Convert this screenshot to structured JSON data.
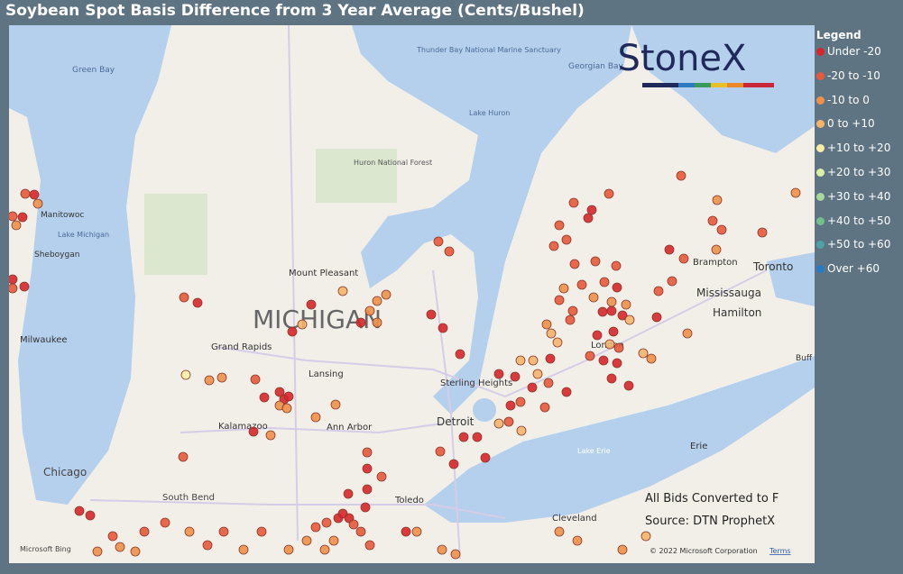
{
  "header": {
    "title": "Soybean Spot Basis Difference from 3 Year Average (Cents/Bushel)"
  },
  "legend": {
    "title": "Legend",
    "items": [
      {
        "label": "Under -20",
        "color": "#d7262b"
      },
      {
        "label": "-20 to -10",
        "color": "#e8583a"
      },
      {
        "label": "-10 to 0",
        "color": "#f0904a"
      },
      {
        "label": "0 to +10",
        "color": "#f5b46a"
      },
      {
        "label": "+10 to +20",
        "color": "#f6efa4"
      },
      {
        "label": "+20 to +30",
        "color": "#dcefa6"
      },
      {
        "label": "+30 to +40",
        "color": "#aad89a"
      },
      {
        "label": "+40 to +50",
        "color": "#74c08a"
      },
      {
        "label": "+50 to +60",
        "color": "#4da3a3"
      },
      {
        "label": "Over +60",
        "color": "#2b7bc2"
      }
    ]
  },
  "map": {
    "logo": "StoneX",
    "notes": [
      "All Bids Converted to F",
      "Source: DTN ProphetX"
    ],
    "attribution": "© 2022 Microsoft Corporation",
    "terms": "Terms",
    "provider": "Microsoft Bing",
    "places": [
      "Green Bay",
      "Manitowoc",
      "Lake Michigan",
      "Sheboygan",
      "Milwaukee",
      "Chicago",
      "South Bend",
      "Kalamazoo",
      "Grand Rapids",
      "Lansing",
      "Ann Arbor",
      "Mount Pleasant",
      "MICHIGAN",
      "Huron National Forest",
      "Thunder Bay National Marine Sanctuary",
      "Georgian Bay",
      "Lake Huron",
      "Sterling Heights",
      "Detroit",
      "Toledo",
      "Cleveland",
      "Lake Erie",
      "Erie",
      "London",
      "Hamilton",
      "Mississauga",
      "Brampton",
      "Toronto",
      "Buff"
    ]
  }
}
